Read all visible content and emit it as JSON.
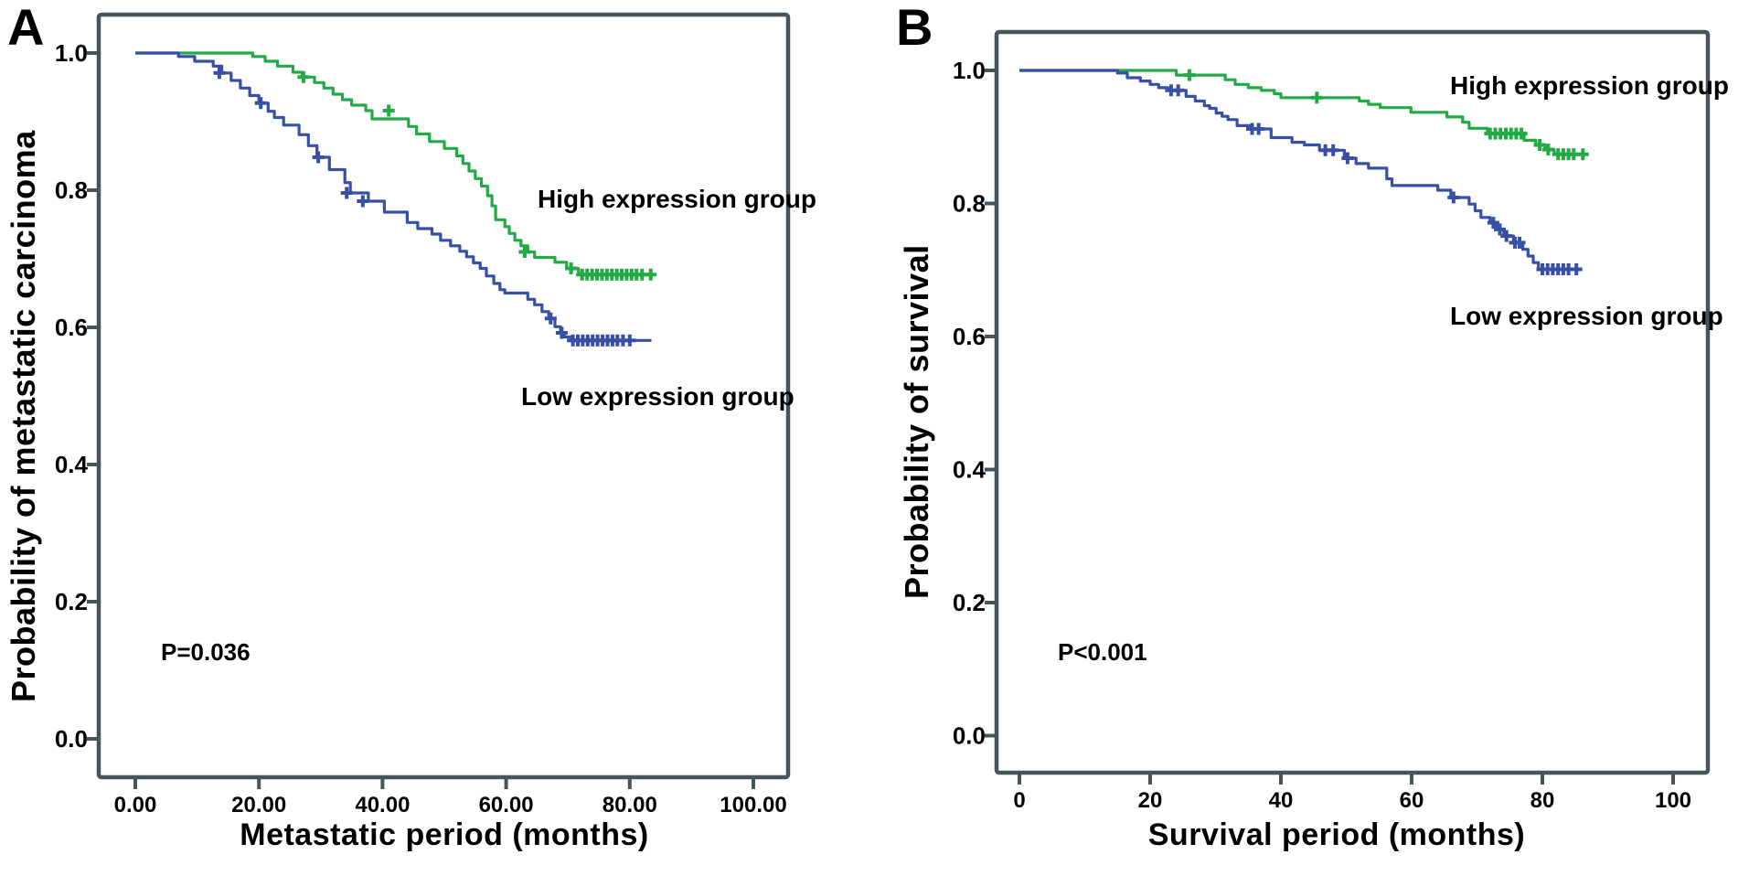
{
  "style": {
    "axis_color": "#47545a",
    "text_color": "#000000",
    "high_color": "#23aa46",
    "low_color": "#3750a5",
    "background": "#ffffff"
  },
  "figure": {
    "panels": [
      {
        "panel_label": "A",
        "y_axis_title": "Probability of metastatic carcinoma",
        "x_axis_title": "Metastatic period (months)",
        "p_value": "P=0.036",
        "legend_high": "High expression group",
        "legend_low": "Low expression group"
      },
      {
        "panel_label": "B",
        "y_axis_title": "Probability of survival",
        "x_axis_title": "Survival period (months)",
        "p_value": "P<0.001",
        "legend_high": "High expression group",
        "legend_low": "Low expression group"
      }
    ]
  },
  "chart_data": [
    {
      "type": "line",
      "subtype": "kaplan-meier-step",
      "title": "",
      "xlabel": "Metastatic period (months)",
      "ylabel": "Probability of metastatic carcinoma",
      "xlim": [
        0,
        100
      ],
      "ylim": [
        0.0,
        1.0
      ],
      "grid": false,
      "legend_position": "annotated-on-plot",
      "x_ticks": {
        "values": [
          0,
          20,
          40,
          60,
          80,
          100
        ],
        "labels": [
          "0.00",
          "20.00",
          "40.00",
          "60.00",
          "80.00",
          "100.00"
        ]
      },
      "y_ticks": {
        "values": [
          1.0,
          0.8,
          0.6,
          0.4,
          0.2,
          0.0
        ],
        "labels": [
          "1.0",
          "0.8",
          "0.6",
          "0.4",
          "0.2",
          "0.0"
        ]
      },
      "annotations": {
        "p_value": "P=0.036"
      },
      "series": [
        {
          "name": "High expression group",
          "color": "#23aa46",
          "points": [
            [
              0,
              1.0
            ],
            [
              19,
              0.995
            ],
            [
              21,
              0.988
            ],
            [
              23,
              0.981
            ],
            [
              25.5,
              0.972
            ],
            [
              27,
              0.965
            ],
            [
              29,
              0.957
            ],
            [
              30.5,
              0.949
            ],
            [
              32,
              0.94
            ],
            [
              33.5,
              0.932
            ],
            [
              35,
              0.924
            ],
            [
              37.3,
              0.916
            ],
            [
              38.3,
              0.904
            ],
            [
              44.2,
              0.893
            ],
            [
              45.5,
              0.882
            ],
            [
              47.6,
              0.871
            ],
            [
              50,
              0.861
            ],
            [
              52,
              0.85
            ],
            [
              53,
              0.839
            ],
            [
              54,
              0.828
            ],
            [
              55,
              0.817
            ],
            [
              56,
              0.806
            ],
            [
              57,
              0.792
            ],
            [
              57.7,
              0.777
            ],
            [
              58.3,
              0.757
            ],
            [
              59.8,
              0.747
            ],
            [
              60.5,
              0.737
            ],
            [
              61.4,
              0.727
            ],
            [
              62.4,
              0.719
            ],
            [
              63.5,
              0.71
            ],
            [
              64.6,
              0.702
            ],
            [
              67.9,
              0.695
            ],
            [
              69.8,
              0.686
            ],
            [
              71.7,
              0.677
            ],
            [
              83.8,
              0.677
            ]
          ],
          "censored": [
            [
              27.2,
              0.965
            ],
            [
              41,
              0.916
            ],
            [
              63,
              0.71
            ],
            [
              70.5,
              0.686
            ],
            [
              72.3,
              0.677
            ],
            [
              73.1,
              0.677
            ],
            [
              73.9,
              0.677
            ],
            [
              74.7,
              0.677
            ],
            [
              75.5,
              0.677
            ],
            [
              76.3,
              0.677
            ],
            [
              77.1,
              0.677
            ],
            [
              77.9,
              0.677
            ],
            [
              78.7,
              0.677
            ],
            [
              79.5,
              0.677
            ],
            [
              80.3,
              0.677
            ],
            [
              81.1,
              0.677
            ],
            [
              82,
              0.677
            ],
            [
              83.4,
              0.677
            ]
          ]
        },
        {
          "name": "Low expression group",
          "color": "#3750a5",
          "points": [
            [
              0,
              1.0
            ],
            [
              7,
              0.995
            ],
            [
              9.6,
              0.988
            ],
            [
              12.6,
              0.981
            ],
            [
              14,
              0.971
            ],
            [
              15.5,
              0.96
            ],
            [
              17,
              0.949
            ],
            [
              18.5,
              0.938
            ],
            [
              20,
              0.927
            ],
            [
              21.5,
              0.915
            ],
            [
              22.5,
              0.906
            ],
            [
              24,
              0.895
            ],
            [
              26.5,
              0.881
            ],
            [
              28,
              0.865
            ],
            [
              29.4,
              0.848
            ],
            [
              31.4,
              0.83
            ],
            [
              33.9,
              0.811
            ],
            [
              34.8,
              0.796
            ],
            [
              37.7,
              0.784
            ],
            [
              40.3,
              0.768
            ],
            [
              44,
              0.753
            ],
            [
              45.7,
              0.744
            ],
            [
              48,
              0.736
            ],
            [
              49.4,
              0.727
            ],
            [
              51,
              0.719
            ],
            [
              52.5,
              0.711
            ],
            [
              53.6,
              0.703
            ],
            [
              54.7,
              0.694
            ],
            [
              55.8,
              0.686
            ],
            [
              56.8,
              0.675
            ],
            [
              58,
              0.664
            ],
            [
              59,
              0.655
            ],
            [
              59.8,
              0.65
            ],
            [
              63.5,
              0.641
            ],
            [
              64.6,
              0.633
            ],
            [
              65.8,
              0.623
            ],
            [
              66.9,
              0.613
            ],
            [
              67.9,
              0.601
            ],
            [
              68.8,
              0.592
            ],
            [
              69.4,
              0.586
            ],
            [
              70.6,
              0.581
            ],
            [
              83.5,
              0.581
            ]
          ],
          "censored": [
            [
              13.6,
              0.971
            ],
            [
              20.3,
              0.927
            ],
            [
              29.6,
              0.848
            ],
            [
              34.2,
              0.796
            ],
            [
              36.8,
              0.784
            ],
            [
              67.2,
              0.613
            ],
            [
              69,
              0.592
            ],
            [
              70.8,
              0.581
            ],
            [
              71.6,
              0.581
            ],
            [
              72.4,
              0.581
            ],
            [
              73.2,
              0.581
            ],
            [
              74,
              0.581
            ],
            [
              74.8,
              0.581
            ],
            [
              75.6,
              0.581
            ],
            [
              76.4,
              0.581
            ],
            [
              77.2,
              0.581
            ],
            [
              78,
              0.581
            ],
            [
              78.9,
              0.581
            ],
            [
              80,
              0.581
            ]
          ]
        }
      ]
    },
    {
      "type": "line",
      "subtype": "kaplan-meier-step",
      "title": "",
      "xlabel": "Survival period (months)",
      "ylabel": "Probability of survival",
      "xlim": [
        0,
        100
      ],
      "ylim": [
        0.0,
        1.0
      ],
      "grid": false,
      "legend_position": "annotated-on-plot",
      "x_ticks": {
        "values": [
          0,
          20,
          40,
          60,
          80,
          100
        ],
        "labels": [
          "0",
          "20",
          "40",
          "60",
          "80",
          "100"
        ]
      },
      "y_ticks": {
        "values": [
          1.0,
          0.8,
          0.6,
          0.4,
          0.2,
          0.0
        ],
        "labels": [
          "1.0",
          "0.8",
          "0.6",
          "0.4",
          "0.2",
          "0.0"
        ]
      },
      "annotations": {
        "p_value": "P<0.001"
      },
      "series": [
        {
          "name": "High expression group",
          "color": "#23aa46",
          "points": [
            [
              0,
              1.0
            ],
            [
              24,
              0.993
            ],
            [
              31.5,
              0.986
            ],
            [
              33,
              0.979
            ],
            [
              35,
              0.974
            ],
            [
              37,
              0.97
            ],
            [
              39,
              0.965
            ],
            [
              40,
              0.959
            ],
            [
              52,
              0.954
            ],
            [
              53.4,
              0.949
            ],
            [
              55.2,
              0.944
            ],
            [
              59.9,
              0.937
            ],
            [
              65.4,
              0.93
            ],
            [
              67.8,
              0.922
            ],
            [
              68.8,
              0.913
            ],
            [
              71.6,
              0.905
            ],
            [
              77.2,
              0.895
            ],
            [
              79,
              0.888
            ],
            [
              80.4,
              0.881
            ],
            [
              81.8,
              0.874
            ],
            [
              86.5,
              0.874
            ]
          ],
          "censored": [
            [
              26,
              0.993
            ],
            [
              45.5,
              0.959
            ],
            [
              72,
              0.905
            ],
            [
              72.8,
              0.905
            ],
            [
              73.6,
              0.905
            ],
            [
              74.4,
              0.905
            ],
            [
              75.2,
              0.905
            ],
            [
              76,
              0.905
            ],
            [
              76.8,
              0.905
            ],
            [
              79.6,
              0.888
            ],
            [
              80.9,
              0.881
            ],
            [
              82.4,
              0.874
            ],
            [
              83.2,
              0.874
            ],
            [
              84,
              0.874
            ],
            [
              84.8,
              0.874
            ],
            [
              86.2,
              0.874
            ]
          ]
        },
        {
          "name": "Low expression group",
          "color": "#3750a5",
          "points": [
            [
              0,
              1.0
            ],
            [
              15,
              0.996
            ],
            [
              16.5,
              0.989
            ],
            [
              18.5,
              0.984
            ],
            [
              20,
              0.979
            ],
            [
              21.3,
              0.974
            ],
            [
              22.7,
              0.97
            ],
            [
              25.5,
              0.961
            ],
            [
              26.9,
              0.954
            ],
            [
              28.3,
              0.947
            ],
            [
              29.1,
              0.943
            ],
            [
              30.1,
              0.936
            ],
            [
              31,
              0.931
            ],
            [
              31.9,
              0.926
            ],
            [
              33.3,
              0.917
            ],
            [
              35.2,
              0.912
            ],
            [
              38.5,
              0.899
            ],
            [
              41.7,
              0.892
            ],
            [
              43.6,
              0.888
            ],
            [
              45.9,
              0.88
            ],
            [
              49.7,
              0.868
            ],
            [
              51.5,
              0.86
            ],
            [
              53.4,
              0.853
            ],
            [
              56.2,
              0.837
            ],
            [
              57,
              0.827
            ],
            [
              64,
              0.82
            ],
            [
              66,
              0.809
            ],
            [
              68.8,
              0.799
            ],
            [
              69.7,
              0.789
            ],
            [
              70.6,
              0.779
            ],
            [
              72,
              0.771
            ],
            [
              73,
              0.761
            ],
            [
              74.1,
              0.751
            ],
            [
              75.6,
              0.741
            ],
            [
              77,
              0.731
            ],
            [
              77.8,
              0.721
            ],
            [
              78.6,
              0.711
            ],
            [
              79.4,
              0.701
            ],
            [
              86,
              0.701
            ]
          ],
          "censored": [
            [
              23.2,
              0.97
            ],
            [
              24.3,
              0.97
            ],
            [
              35.6,
              0.912
            ],
            [
              36.6,
              0.912
            ],
            [
              46.8,
              0.88
            ],
            [
              48,
              0.88
            ],
            [
              50.2,
              0.868
            ],
            [
              66.4,
              0.809
            ],
            [
              72.5,
              0.771
            ],
            [
              73.5,
              0.761
            ],
            [
              74.5,
              0.751
            ],
            [
              75.8,
              0.741
            ],
            [
              76.5,
              0.741
            ],
            [
              80,
              0.701
            ],
            [
              80.8,
              0.701
            ],
            [
              81.6,
              0.701
            ],
            [
              82.4,
              0.701
            ],
            [
              83.2,
              0.701
            ],
            [
              84,
              0.701
            ],
            [
              85.2,
              0.701
            ]
          ]
        }
      ]
    }
  ]
}
